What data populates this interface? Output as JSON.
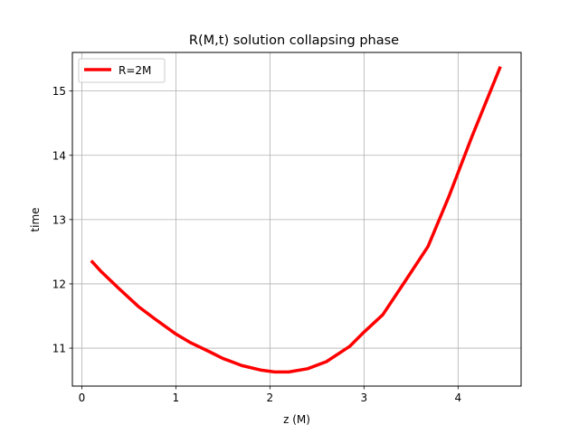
{
  "chart_data": {
    "type": "line",
    "title": "R(M,t) solution collapsing phase",
    "xlabel": "z (M)",
    "ylabel": "time",
    "xlim": [
      -0.1,
      4.67
    ],
    "ylim": [
      10.41,
      15.6
    ],
    "xticks": [
      0,
      1,
      2,
      3,
      4
    ],
    "yticks": [
      11,
      12,
      13,
      14,
      15
    ],
    "grid": true,
    "legend_position": "upper-left",
    "series": [
      {
        "name": "R=2M",
        "color": "#ff0000",
        "x": [
          0.1,
          0.2,
          0.4,
          0.6,
          0.8,
          1.0,
          1.15,
          1.35,
          1.5,
          1.7,
          1.9,
          2.05,
          2.2,
          2.4,
          2.6,
          2.85,
          3.0,
          3.2,
          3.45,
          3.68,
          3.9,
          4.15,
          4.45
        ],
        "y": [
          12.36,
          12.2,
          11.92,
          11.65,
          11.43,
          11.22,
          11.09,
          10.95,
          10.84,
          10.73,
          10.66,
          10.63,
          10.63,
          10.68,
          10.79,
          11.03,
          11.25,
          11.52,
          12.07,
          12.58,
          13.35,
          14.3,
          15.38
        ]
      }
    ]
  }
}
